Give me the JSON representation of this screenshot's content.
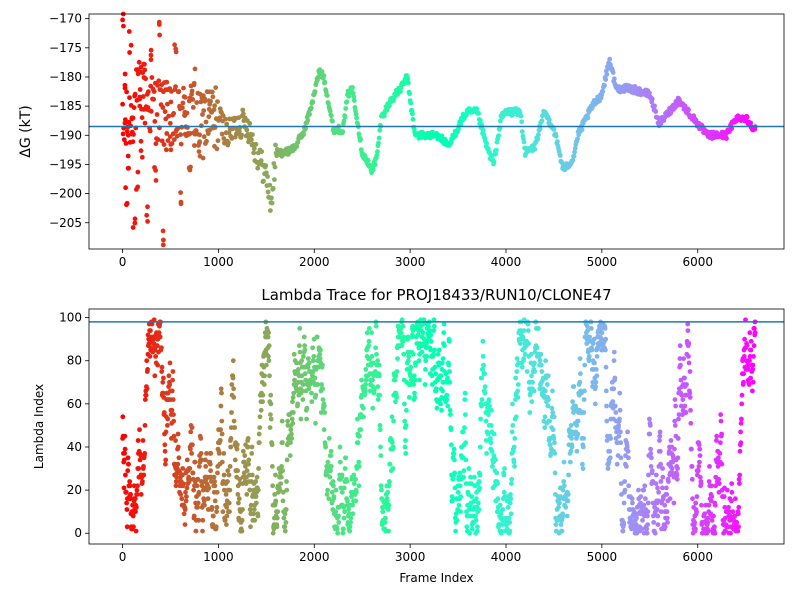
{
  "chart_data": [
    {
      "type": "scatter",
      "title": "",
      "xlabel": "",
      "ylabel": "ΔG (kT)",
      "xlim": [
        -350,
        6900
      ],
      "ylim": [
        -209.5,
        -169.2
      ],
      "xticks": [
        0,
        1000,
        2000,
        3000,
        4000,
        5000,
        6000
      ],
      "xtick_labels": [
        "0",
        "1000",
        "2000",
        "3000",
        "4000",
        "5000",
        "6000"
      ],
      "yticks": [
        -170,
        -175,
        -180,
        -185,
        -190,
        -195,
        -200,
        -205
      ],
      "ytick_labels": [
        "−170",
        "−175",
        "−180",
        "−185",
        "−190",
        "−195",
        "−200",
        "−205"
      ],
      "hline": -188.5,
      "colormap": "rainbow (red at frame 0 → violet at last frame)",
      "hline_color": "#1f77b4",
      "grid": false,
      "series": [
        {
          "x": [
            0,
            100,
            200,
            300,
            400,
            500,
            600,
            700,
            800,
            900,
            1000,
            1100,
            1200,
            1300,
            1400,
            1500,
            1550,
            1600,
            1700,
            1800,
            1900,
            2000,
            2050,
            2100,
            2200,
            2300,
            2350,
            2400,
            2500,
            2600,
            2650,
            2700,
            2800,
            2900,
            2970,
            3050,
            3100,
            3300,
            3400,
            3550,
            3600,
            3700,
            3800,
            3870,
            3950,
            4000,
            4150,
            4200,
            4300,
            4400,
            4500,
            4600,
            4700,
            4750,
            4900,
            5000,
            5080,
            5150,
            5300,
            5500,
            5600,
            5700,
            5800,
            6000,
            6100,
            6200,
            6300,
            6400,
            6500,
            6600
          ],
          "y": [
            -190,
            -186,
            -182,
            -185,
            -186,
            -188,
            -187,
            -186,
            -189,
            -187,
            -187,
            -190,
            -188,
            -188,
            -193,
            -197,
            -202,
            -193,
            -193,
            -192,
            -189,
            -183,
            -179,
            -180,
            -189,
            -189,
            -183,
            -182,
            -193,
            -196,
            -194,
            -187,
            -184,
            -182,
            -180,
            -190,
            -190,
            -190,
            -192,
            -187,
            -186,
            -186,
            -192,
            -195,
            -187,
            -186,
            -186,
            -193,
            -192,
            -186,
            -189,
            -196,
            -194,
            -190,
            -185,
            -183,
            -177,
            -182,
            -182,
            -183,
            -188,
            -186,
            -184,
            -188,
            -190,
            -190,
            -190,
            -187,
            -187,
            -189
          ]
        },
        {
          "x": [
            0,
            20,
            40,
            60,
            80,
            100,
            120,
            150,
            180,
            200,
            230,
            260,
            300,
            340,
            380,
            420,
            460,
            500,
            550,
            600,
            650,
            700,
            750,
            800,
            850,
            900,
            950
          ],
          "y": [
            -170,
            -180,
            -200,
            -195,
            -174,
            -189,
            -206,
            -198,
            -183,
            -192,
            -179,
            -204,
            -176,
            -196,
            -171,
            -208,
            -182,
            -191,
            -175,
            -200,
            -185,
            -194,
            -180,
            -192,
            -183,
            -186,
            -190
          ]
        }
      ]
    },
    {
      "type": "scatter",
      "title": "Lambda Trace for PROJ18433/RUN10/CLONE47",
      "xlabel": "Frame Index",
      "ylabel": "Lambda Index",
      "xlim": [
        -350,
        6900
      ],
      "ylim": [
        -5,
        104
      ],
      "xticks": [
        0,
        1000,
        2000,
        3000,
        4000,
        5000,
        6000
      ],
      "xtick_labels": [
        "0",
        "1000",
        "2000",
        "3000",
        "4000",
        "5000",
        "6000"
      ],
      "yticks": [
        0,
        20,
        40,
        60,
        80,
        100
      ],
      "ytick_labels": [
        "0",
        "20",
        "40",
        "60",
        "80",
        "100"
      ],
      "hline": 98,
      "hline_color": "#1f77b4",
      "colormap": "rainbow (red at frame 0 → violet at last frame)",
      "grid": false,
      "x_range": [
        0,
        6600
      ],
      "y_range": [
        0,
        99
      ]
    }
  ]
}
